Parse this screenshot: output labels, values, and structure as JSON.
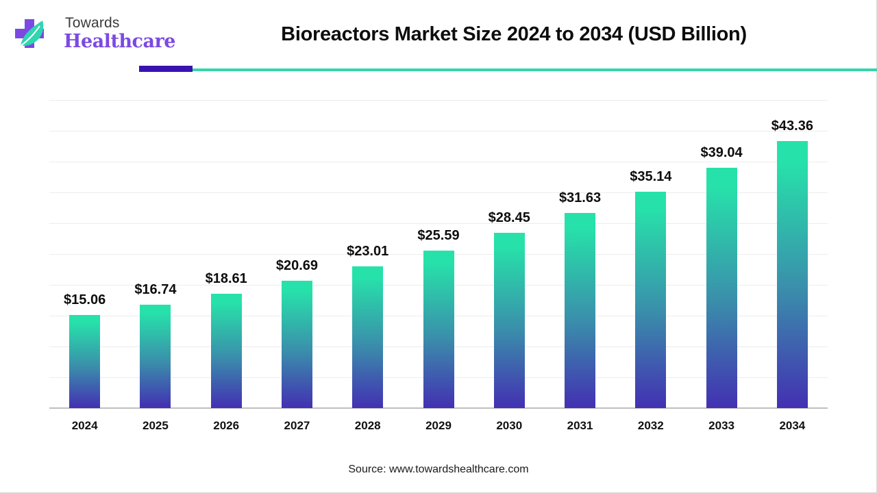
{
  "brand": {
    "line1": "Towards",
    "line2": "Healthcare",
    "colors": {
      "purple": "#7b4ae2",
      "teal": "#2fd6b0",
      "text": "#3a3a3a"
    }
  },
  "header": {
    "title": "Bioreactors Market Size 2024 to 2034 (USD Billion)",
    "accent_colors": {
      "purple": "#3a12b0",
      "teal": "#36d4a8"
    }
  },
  "footer": {
    "source": "Source: www.towardshealthcare.com"
  },
  "style": {
    "bar_gradient_top": "#27e1aa",
    "bar_gradient_mid": "#3a8fab",
    "bar_gradient_bottom": "#4330b2",
    "gridline_color": "#ececec",
    "axis_color": "#bfbfbf"
  },
  "chart_data": {
    "type": "bar",
    "title": "Bioreactors Market Size 2024 to 2034 (USD Billion)",
    "xlabel": "",
    "ylabel": "USD Billion",
    "categories": [
      "2024",
      "2025",
      "2026",
      "2027",
      "2028",
      "2029",
      "2030",
      "2031",
      "2032",
      "2033",
      "2034"
    ],
    "values": [
      15.06,
      16.74,
      18.61,
      20.69,
      23.01,
      25.59,
      28.45,
      31.63,
      35.14,
      39.04,
      43.36
    ],
    "labels": [
      "$15.06",
      "$16.74",
      "$18.61",
      "$20.69",
      "$23.01",
      "$25.59",
      "$28.45",
      "$31.63",
      "$35.14",
      "$39.04",
      "$43.36"
    ],
    "ylim": [
      0,
      50
    ],
    "grid_step": 5,
    "grid": true,
    "y_axis_visible": false,
    "legend": null,
    "source": "Source: www.towardshealthcare.com"
  }
}
